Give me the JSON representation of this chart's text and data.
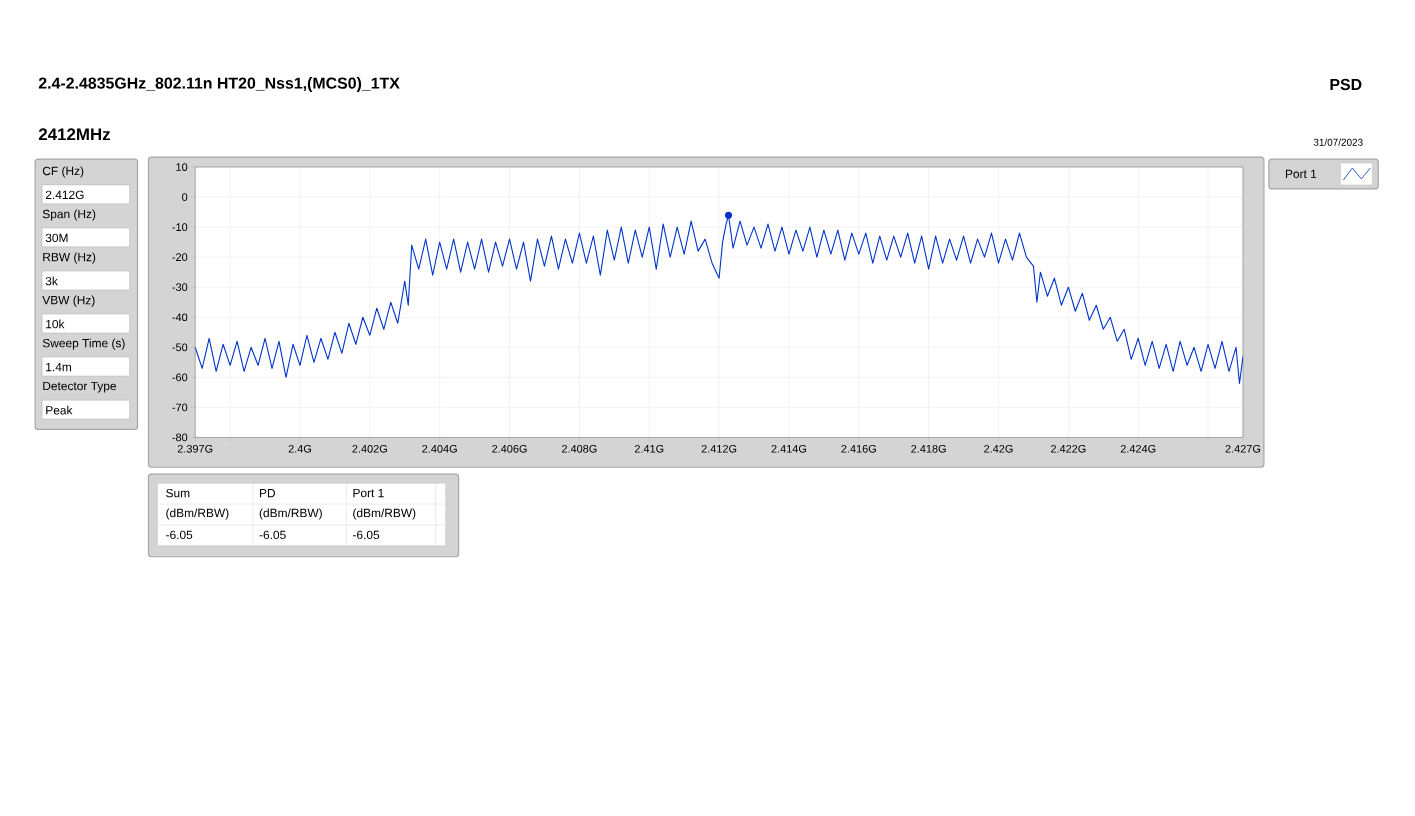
{
  "chart_data": {
    "type": "line",
    "title": "2.4-2.4835GHz_802.11n HT20_Nss1,(MCS0)_1TX",
    "subtitle": "2412MHz",
    "annotations": [
      "PSD",
      "31/07/2023",
      "CF (Hz)",
      "2.412G",
      "Span (Hz)",
      "30M",
      "RBW (Hz)",
      "3k",
      "VBW (Hz)",
      "10k",
      "Sweep Time (s)",
      "1.4m",
      "Detector Type",
      "Peak",
      "Sum",
      "PD",
      "Port 1",
      "(dBm/RBW)",
      "(dBm/RBW)",
      "(dBm/RBW)",
      "-6.05",
      "-6.05",
      "-6.05"
    ],
    "xlim": [
      2.397,
      2.427
    ],
    "ylim": [
      -80,
      10
    ],
    "xticks": [
      {
        "value": 2.397,
        "label": "2.397G"
      },
      {
        "value": 2.398,
        "label": null
      },
      {
        "value": 2.4,
        "label": "2.4G"
      },
      {
        "value": 2.402,
        "label": "2.402G"
      },
      {
        "value": 2.404,
        "label": "2.404G"
      },
      {
        "value": 2.406,
        "label": "2.406G"
      },
      {
        "value": 2.408,
        "label": "2.408G"
      },
      {
        "value": 2.41,
        "label": "2.41G"
      },
      {
        "value": 2.412,
        "label": "2.412G"
      },
      {
        "value": 2.414,
        "label": "2.414G"
      },
      {
        "value": 2.416,
        "label": "2.416G"
      },
      {
        "value": 2.418,
        "label": "2.418G"
      },
      {
        "value": 2.42,
        "label": "2.42G"
      },
      {
        "value": 2.422,
        "label": "2.422G"
      },
      {
        "value": 2.424,
        "label": "2.424G"
      },
      {
        "value": 2.426,
        "label": null
      },
      {
        "value": 2.427,
        "label": "2.427G"
      }
    ],
    "yticks": [
      -80,
      -70,
      -60,
      -50,
      -40,
      -30,
      -20,
      -10,
      0,
      10
    ],
    "grid": true,
    "legend": "top right",
    "series": [
      {
        "name": "Port 1",
        "color": "#0033cc",
        "x": [
          2.397,
          2.3972,
          2.3974,
          2.3976,
          2.3978,
          2.398,
          2.3982,
          2.3984,
          2.3986,
          2.3988,
          2.399,
          2.3992,
          2.3994,
          2.3996,
          2.3998,
          2.4,
          2.4002,
          2.4004,
          2.4006,
          2.4008,
          2.401,
          2.4012,
          2.4014,
          2.4016,
          2.4018,
          2.402,
          2.4022,
          2.4024,
          2.4026,
          2.4028,
          2.403,
          2.4031,
          2.4032,
          2.4034,
          2.4036,
          2.4038,
          2.404,
          2.4042,
          2.4044,
          2.4046,
          2.4048,
          2.405,
          2.4052,
          2.4054,
          2.4056,
          2.4058,
          2.406,
          2.4062,
          2.4064,
          2.4066,
          2.4068,
          2.407,
          2.4072,
          2.4074,
          2.4076,
          2.4078,
          2.408,
          2.4082,
          2.4084,
          2.4086,
          2.4088,
          2.409,
          2.4092,
          2.4094,
          2.4096,
          2.4098,
          2.41,
          2.4102,
          2.4104,
          2.4106,
          2.4108,
          2.411,
          2.4112,
          2.4114,
          2.4116,
          2.4118,
          2.412,
          2.4121,
          2.4122,
          2.41227,
          2.4124,
          2.4126,
          2.4128,
          2.413,
          2.4132,
          2.4134,
          2.4136,
          2.4138,
          2.414,
          2.4142,
          2.4144,
          2.4146,
          2.4148,
          2.415,
          2.4152,
          2.4154,
          2.4156,
          2.4158,
          2.416,
          2.4162,
          2.4164,
          2.4166,
          2.4168,
          2.417,
          2.4172,
          2.4174,
          2.4176,
          2.4178,
          2.418,
          2.4182,
          2.4184,
          2.4186,
          2.4188,
          2.419,
          2.4192,
          2.4194,
          2.4196,
          2.4198,
          2.42,
          2.4202,
          2.4204,
          2.4206,
          2.4208,
          2.421,
          2.4211,
          2.4212,
          2.4214,
          2.4216,
          2.4218,
          2.422,
          2.4222,
          2.4224,
          2.4226,
          2.4228,
          2.423,
          2.4232,
          2.4234,
          2.4236,
          2.4238,
          2.424,
          2.4242,
          2.4244,
          2.4246,
          2.4248,
          2.425,
          2.4252,
          2.4254,
          2.4256,
          2.4258,
          2.426,
          2.4262,
          2.4264,
          2.4266,
          2.4268,
          2.4269,
          2.427
        ],
        "values": [
          -50,
          -57,
          -47,
          -58,
          -49,
          -56,
          -48,
          -58,
          -50,
          -56,
          -47,
          -57,
          -48,
          -60,
          -49,
          -56,
          -46,
          -55,
          -47,
          -54,
          -45,
          -52,
          -42,
          -49,
          -40,
          -46,
          -37,
          -44,
          -35,
          -42,
          -28,
          -36,
          -16,
          -24,
          -14,
          -26,
          -15,
          -24,
          -14,
          -25,
          -15,
          -24,
          -14,
          -25,
          -15,
          -23,
          -14,
          -24,
          -15,
          -28,
          -14,
          -23,
          -13,
          -24,
          -14,
          -22,
          -12,
          -22,
          -13,
          -26,
          -11,
          -21,
          -10,
          -22,
          -11,
          -20,
          -10,
          -24,
          -9,
          -20,
          -10,
          -19,
          -8,
          -18,
          -14,
          -22,
          -27,
          -15,
          -9,
          -6.05,
          -17,
          -8,
          -16,
          -10,
          -17,
          -9,
          -18,
          -10,
          -19,
          -11,
          -18,
          -10,
          -20,
          -11,
          -19,
          -11,
          -21,
          -12,
          -19,
          -12,
          -22,
          -13,
          -21,
          -13,
          -20,
          -12,
          -22,
          -13,
          -24,
          -13,
          -22,
          -14,
          -21,
          -13,
          -22,
          -14,
          -20,
          -12,
          -22,
          -14,
          -21,
          -12,
          -20,
          -23,
          -35,
          -25,
          -33,
          -27,
          -36,
          -30,
          -38,
          -32,
          -41,
          -36,
          -44,
          -40,
          -48,
          -44,
          -54,
          -47,
          -56,
          -48,
          -57,
          -49,
          -58,
          -48,
          -56,
          -50,
          -58,
          -49,
          -57,
          -48,
          -58,
          -50,
          -62,
          -53
        ]
      },
      {
        "type": "scatter",
        "marker": "circle",
        "color": "#0033cc",
        "x": [
          2.41227
        ],
        "values": [
          -6.05
        ]
      }
    ]
  }
}
